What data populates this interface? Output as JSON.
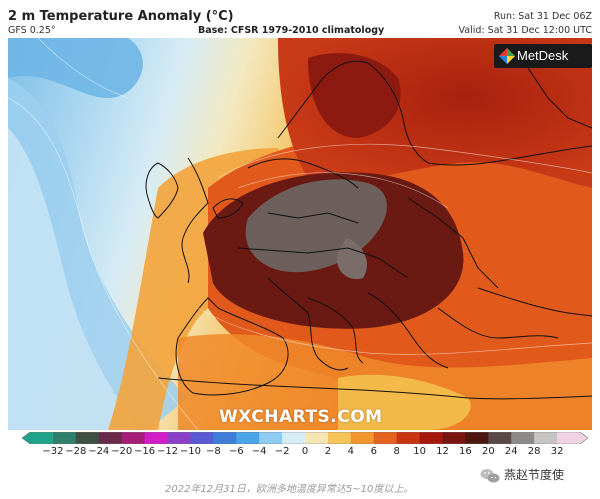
{
  "header": {
    "title": "2 m Temperature Anomaly (°C)",
    "model": "GFS 0.25°",
    "base": "Base: CFSR 1979-2010 climatology",
    "run": "Run: Sat 31 Dec 06Z",
    "valid": "Valid: Sat 31 Dec 12:00 UTC"
  },
  "logo": {
    "text": "MetDesk",
    "icon": "metdesk-logo-icon"
  },
  "watermark": "WXCHARTS.COM",
  "legend": {
    "ticks": [
      "−32",
      "−28",
      "−24",
      "−20",
      "−16",
      "−12",
      "−10",
      "−8",
      "−6",
      "−4",
      "−2",
      "0",
      "2",
      "4",
      "6",
      "8",
      "10",
      "12",
      "16",
      "20",
      "24",
      "28",
      "32"
    ],
    "colors": [
      "#1fa38a",
      "#2f7f6c",
      "#3e4f43",
      "#6a2b4a",
      "#a51e78",
      "#d21cc8",
      "#8a3fc9",
      "#5a5ad3",
      "#3f7fd8",
      "#4aa4e8",
      "#8fcbf2",
      "#d8ecf6",
      "#f5e7b5",
      "#f6c35a",
      "#f1962c",
      "#e3621d",
      "#c93512",
      "#a4180e",
      "#781510",
      "#4e1810",
      "#5a4848",
      "#8d8a8a",
      "#c7c4c4",
      "#f1d3e4"
    ]
  },
  "caption": "2022年12月31日，欧洲多地温度异常达5~10度以上。",
  "account": {
    "name": "燕赵节度使",
    "icon": "wechat-icon"
  }
}
